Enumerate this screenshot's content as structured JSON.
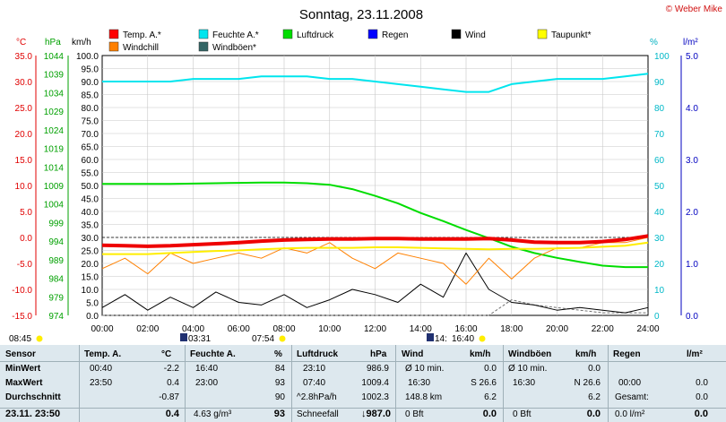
{
  "header": {
    "title": "Sonntag, 23.11.2008",
    "copyright": "© Weber Mike"
  },
  "legend": [
    {
      "label": "Temp. A.*",
      "color": "#ff0000"
    },
    {
      "label": "Feuchte A.*",
      "color": "#00e5ee"
    },
    {
      "label": "Luftdruck",
      "color": "#00dd00"
    },
    {
      "label": "Regen",
      "color": "#0000ff"
    },
    {
      "label": "Wind",
      "color": "#000000"
    },
    {
      "label": "Taupunkt*",
      "color": "#ffff00"
    },
    {
      "label": "Windchill",
      "color": "#ff8000"
    },
    {
      "label": "Windböen*",
      "color": "#336666"
    }
  ],
  "chart_data": {
    "type": "line",
    "x": [
      0,
      1,
      2,
      3,
      4,
      5,
      6,
      7,
      8,
      9,
      10,
      11,
      12,
      13,
      14,
      15,
      16,
      17,
      18,
      19,
      20,
      21,
      22,
      23,
      24
    ],
    "xticks": [
      "00:00",
      "02:00",
      "04:00",
      "06:00",
      "08:00",
      "10:00",
      "12:00",
      "14:00",
      "16:00",
      "18:00",
      "20:00",
      "22:00",
      "24:00"
    ],
    "xlim": [
      0,
      24
    ],
    "axes": {
      "temp": {
        "label": "°C",
        "ticks": [
          "35.0",
          "30.0",
          "25.0",
          "20.0",
          "15.0",
          "10.0",
          "5.0",
          "0.0",
          "-5.0",
          "-10.0",
          "-15.0"
        ],
        "range": [
          -15,
          35
        ]
      },
      "pressure": {
        "label": "hPa",
        "ticks": [
          "1044",
          "1039",
          "1034",
          "1029",
          "1024",
          "1019",
          "1014",
          "1009",
          "1004",
          "999",
          "994",
          "989",
          "984",
          "979",
          "974"
        ],
        "range": [
          974,
          1044
        ]
      },
      "wind": {
        "label": "km/h",
        "ticks": [
          "100.0",
          "95.0",
          "90.0",
          "85.0",
          "80.0",
          "75.0",
          "70.0",
          "65.0",
          "60.0",
          "55.0",
          "50.0",
          "45.0",
          "40.0",
          "35.0",
          "30.0",
          "25.0",
          "20.0",
          "15.0",
          "10.0",
          "5.0",
          "0.0"
        ],
        "range": [
          0,
          100
        ]
      },
      "humidity": {
        "label": "%",
        "ticks": [
          "100",
          "90",
          "80",
          "70",
          "60",
          "50",
          "40",
          "30",
          "20",
          "10",
          "0"
        ],
        "range": [
          0,
          100
        ]
      },
      "rain": {
        "label": "l/m²",
        "ticks": [
          "5.0",
          "4.0",
          "3.0",
          "2.0",
          "1.0",
          "0.0"
        ],
        "range": [
          0,
          5
        ]
      }
    },
    "series": [
      {
        "name": "Temp. A.*",
        "axis": "temp",
        "values": [
          -1.5,
          -1.6,
          -1.7,
          -1.6,
          -1.4,
          -1.2,
          -1.0,
          -0.7,
          -0.5,
          -0.4,
          -0.3,
          -0.3,
          -0.2,
          -0.2,
          -0.3,
          -0.3,
          -0.3,
          -0.2,
          -0.5,
          -0.9,
          -1.0,
          -1.0,
          -0.8,
          -0.4,
          0.3
        ]
      },
      {
        "name": "Taupunkt*",
        "axis": "temp",
        "values": [
          -3.2,
          -3.2,
          -3.2,
          -3.0,
          -2.8,
          -2.6,
          -2.5,
          -2.3,
          -2.1,
          -2.0,
          -2.0,
          -2.0,
          -1.9,
          -1.9,
          -2.0,
          -2.1,
          -2.2,
          -2.3,
          -2.2,
          -2.2,
          -2.1,
          -2.0,
          -1.8,
          -1.6,
          -1.0
        ]
      },
      {
        "name": "Windchill",
        "axis": "temp",
        "values": [
          -6,
          -4,
          -7,
          -3,
          -5,
          -4,
          -3,
          -4,
          -2,
          -3,
          -1,
          -4,
          -6,
          -3,
          -4,
          -5,
          -9,
          -4,
          -8,
          -4,
          -2,
          -2,
          -1,
          -1,
          0
        ]
      },
      {
        "name": "Feuchte A.*",
        "axis": "humidity",
        "values": [
          90,
          90,
          90,
          90,
          91,
          91,
          91,
          92,
          92,
          92,
          91,
          91,
          90,
          89,
          88,
          87,
          86,
          86,
          89,
          90,
          91,
          91,
          91,
          92,
          93
        ]
      },
      {
        "name": "Luftdruck",
        "axis": "pressure",
        "values": [
          1009.4,
          1009.4,
          1009.4,
          1009.4,
          1009.5,
          1009.6,
          1009.7,
          1009.8,
          1009.8,
          1009.6,
          1009.2,
          1008.0,
          1006.2,
          1004.2,
          1001.6,
          999.4,
          997.0,
          994.8,
          992.5,
          990.8,
          989.5,
          988.4,
          987.4,
          987.0,
          987.0
        ]
      },
      {
        "name": "Wind",
        "axis": "wind",
        "values": [
          3,
          8,
          2,
          7,
          3,
          9,
          5,
          4,
          8,
          3,
          6,
          10,
          8,
          5,
          12,
          7,
          24,
          10,
          5,
          4,
          2,
          3,
          2,
          1,
          3
        ]
      },
      {
        "name": "Windböen*",
        "axis": "wind",
        "values": [
          0,
          0,
          0,
          0,
          0,
          0,
          0,
          0,
          0,
          0,
          0,
          0,
          0,
          0,
          0,
          0,
          0,
          0,
          6,
          4,
          3,
          2,
          1,
          1,
          1
        ]
      }
    ],
    "markers": {
      "sunrise": "08:45",
      "moonset": "03:31",
      "sunset_mark": "07:54",
      "moon1": "14:",
      "moon2": "16:40"
    }
  },
  "stats": {
    "row_labels": [
      "Sensor",
      "MinWert",
      "MaxWert",
      "Durchschnitt",
      "23.11. 23:50"
    ],
    "temp": {
      "header": "Temp. A.",
      "unit": "°C",
      "min_time": "00:40",
      "min": "-2.2",
      "max_time": "23:50",
      "max": "0.4",
      "avg": "-0.87",
      "current": "0.4"
    },
    "humidity": {
      "header": "Feuchte A.",
      "unit": "%",
      "min_time": "16:40",
      "min": "84",
      "max_time": "23:00",
      "max": "93",
      "avg": "90",
      "extra": "4.63 g/m³",
      "current": "93"
    },
    "pressure": {
      "header": "Luftdruck",
      "unit": "hPa",
      "min_time": "23:10",
      "min": "986.9",
      "max_time": "07:40",
      "max": "1009.4",
      "trend": "^2.8hPa/h",
      "avg": "1002.3",
      "extra": "Schneefall",
      "current": "↓987.0"
    },
    "wind": {
      "header": "Wind",
      "unit": "km/h",
      "row1_label": "Ø 10 min.",
      "row1_val": "0.0",
      "max_time": "16:30",
      "max": "S 26.6",
      "distance": "148.8 km",
      "avg": "6.2",
      "bft": "0 Bft",
      "current": "0.0"
    },
    "gust": {
      "header": "Windböen",
      "unit": "km/h",
      "row1_label": "Ø 10 min.",
      "row1_val": "0.0",
      "max_time": "16:30",
      "max": "N 26.6",
      "avg": "6.2",
      "bft": "0 Bft",
      "current": "0.0"
    },
    "rain": {
      "header": "Regen",
      "unit": "l/m²",
      "max_time": "00:00",
      "max": "0.0",
      "total_label": "Gesamt:",
      "total": "0.0",
      "extra": "0.0 l/m²",
      "current": "0.0"
    }
  }
}
